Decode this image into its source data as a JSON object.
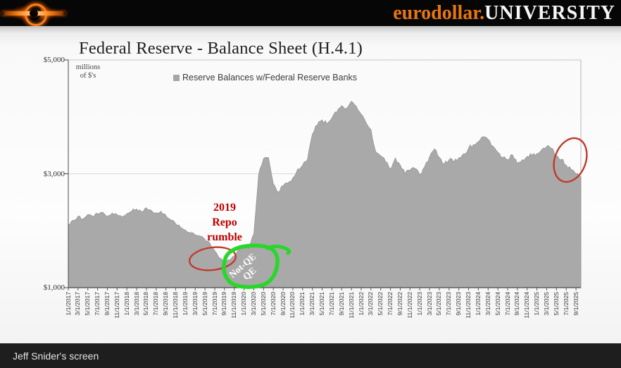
{
  "header": {
    "brand_orange": "eurodollar.",
    "brand_white": "UNIVERSITY",
    "logo": "black-hole-accretion-disk"
  },
  "footer": {
    "status_text": "Jeff Snider's screen"
  },
  "slide": {
    "title": "Federal Reserve - Balance Sheet (H.4.1)",
    "axis_note_line1": "millions",
    "axis_note_line2": "of $'s",
    "legend_label": "Reserve Balances w/Federal Reserve Banks",
    "annotations": {
      "repo_line1": "2019",
      "repo_line2": "Repo",
      "repo_line3": "rumble",
      "repo_color": "#c00000",
      "notqe_line1": "Not-QE",
      "notqe_line2": "QE",
      "notqe_text_color": "#ffffff",
      "green_circle_color": "#2bd62b",
      "red_ellipse_color": "#c0392b"
    }
  },
  "chart_data": {
    "type": "area",
    "title": "Federal Reserve - Balance Sheet (H.4.1)",
    "y_units": "millions of $'s",
    "ylim": [
      1000,
      5000
    ],
    "y_tick_labels": [
      "$5,000",
      "$3,000",
      "$1,000"
    ],
    "y_tick_values": [
      5000,
      3000,
      1000
    ],
    "gridlines_y": [
      3000
    ],
    "legend_position": "top-center",
    "x_monthly_range": "1/2017 to 10/2025 (monthly estimates read from plot)",
    "x_tick_labels": [
      "1/1/2017",
      "3/1/2017",
      "5/1/2017",
      "7/1/2017",
      "9/1/2017",
      "11/1/2017",
      "1/1/2018",
      "3/1/2018",
      "5/1/2018",
      "7/1/2018",
      "9/1/2018",
      "11/1/2018",
      "1/1/2019",
      "3/1/2019",
      "5/1/2019",
      "7/1/2019",
      "9/1/2019",
      "11/1/2019",
      "1/1/2020",
      "3/1/2020",
      "5/1/2020",
      "7/1/2020",
      "9/1/2020",
      "11/1/2020",
      "1/1/2021",
      "3/1/2021",
      "5/1/2021",
      "7/1/2021",
      "9/1/2021",
      "11/1/2021",
      "1/1/2022",
      "3/1/2022",
      "5/1/2022",
      "7/1/2022",
      "9/1/2022",
      "11/1/2022",
      "1/1/2023",
      "3/1/2023",
      "5/1/2023",
      "7/1/2023",
      "9/1/2023",
      "11/1/2023",
      "1/1/2024",
      "3/1/2024",
      "5/1/2024",
      "7/1/2024",
      "9/1/2024",
      "11/1/2024",
      "1/1/2025",
      "3/1/2025",
      "5/1/2025",
      "7/1/2025",
      "9/1/2025"
    ],
    "series": [
      {
        "name": "Reserve Balances w/Federal Reserve Banks",
        "color": "#a9a9a9",
        "edge_color": "#8f8f8f",
        "values_monthly": [
          2100,
          2180,
          2250,
          2200,
          2280,
          2250,
          2300,
          2330,
          2250,
          2310,
          2280,
          2250,
          2300,
          2350,
          2380,
          2330,
          2400,
          2360,
          2310,
          2340,
          2260,
          2190,
          2120,
          2060,
          2010,
          1960,
          1930,
          1900,
          1850,
          1780,
          1650,
          1520,
          1450,
          1490,
          1560,
          1680,
          1720,
          1690,
          1950,
          3000,
          3260,
          3290,
          2820,
          2680,
          2790,
          2840,
          2930,
          3090,
          3150,
          3250,
          3700,
          3850,
          3950,
          3880,
          3980,
          4080,
          4200,
          4150,
          4280,
          4180,
          4050,
          3900,
          3780,
          3380,
          3320,
          3210,
          3080,
          3280,
          3150,
          3010,
          3060,
          3090,
          2990,
          3120,
          3300,
          3440,
          3290,
          3170,
          3250,
          3210,
          3280,
          3350,
          3450,
          3520,
          3560,
          3650,
          3600,
          3480,
          3370,
          3290,
          3240,
          3330,
          3180,
          3250,
          3300,
          3330,
          3350,
          3420,
          3480,
          3450,
          3310,
          3250,
          3160,
          3080,
          2990,
          2950
        ]
      }
    ],
    "annotations": [
      {
        "type": "text+ellipse",
        "text": "2019 Repo rumble",
        "color": "#c00000",
        "targets": "2019 trough near 1,450-1,550"
      },
      {
        "type": "hand-drawn-circle",
        "text": "Not-QE QE",
        "color": "#2bd62b",
        "targets": "late-2019/early-2020 reserve rebound"
      },
      {
        "type": "ellipse",
        "text": "",
        "color": "#c0392b",
        "targets": "2025 decline toward ~2,950"
      }
    ]
  }
}
